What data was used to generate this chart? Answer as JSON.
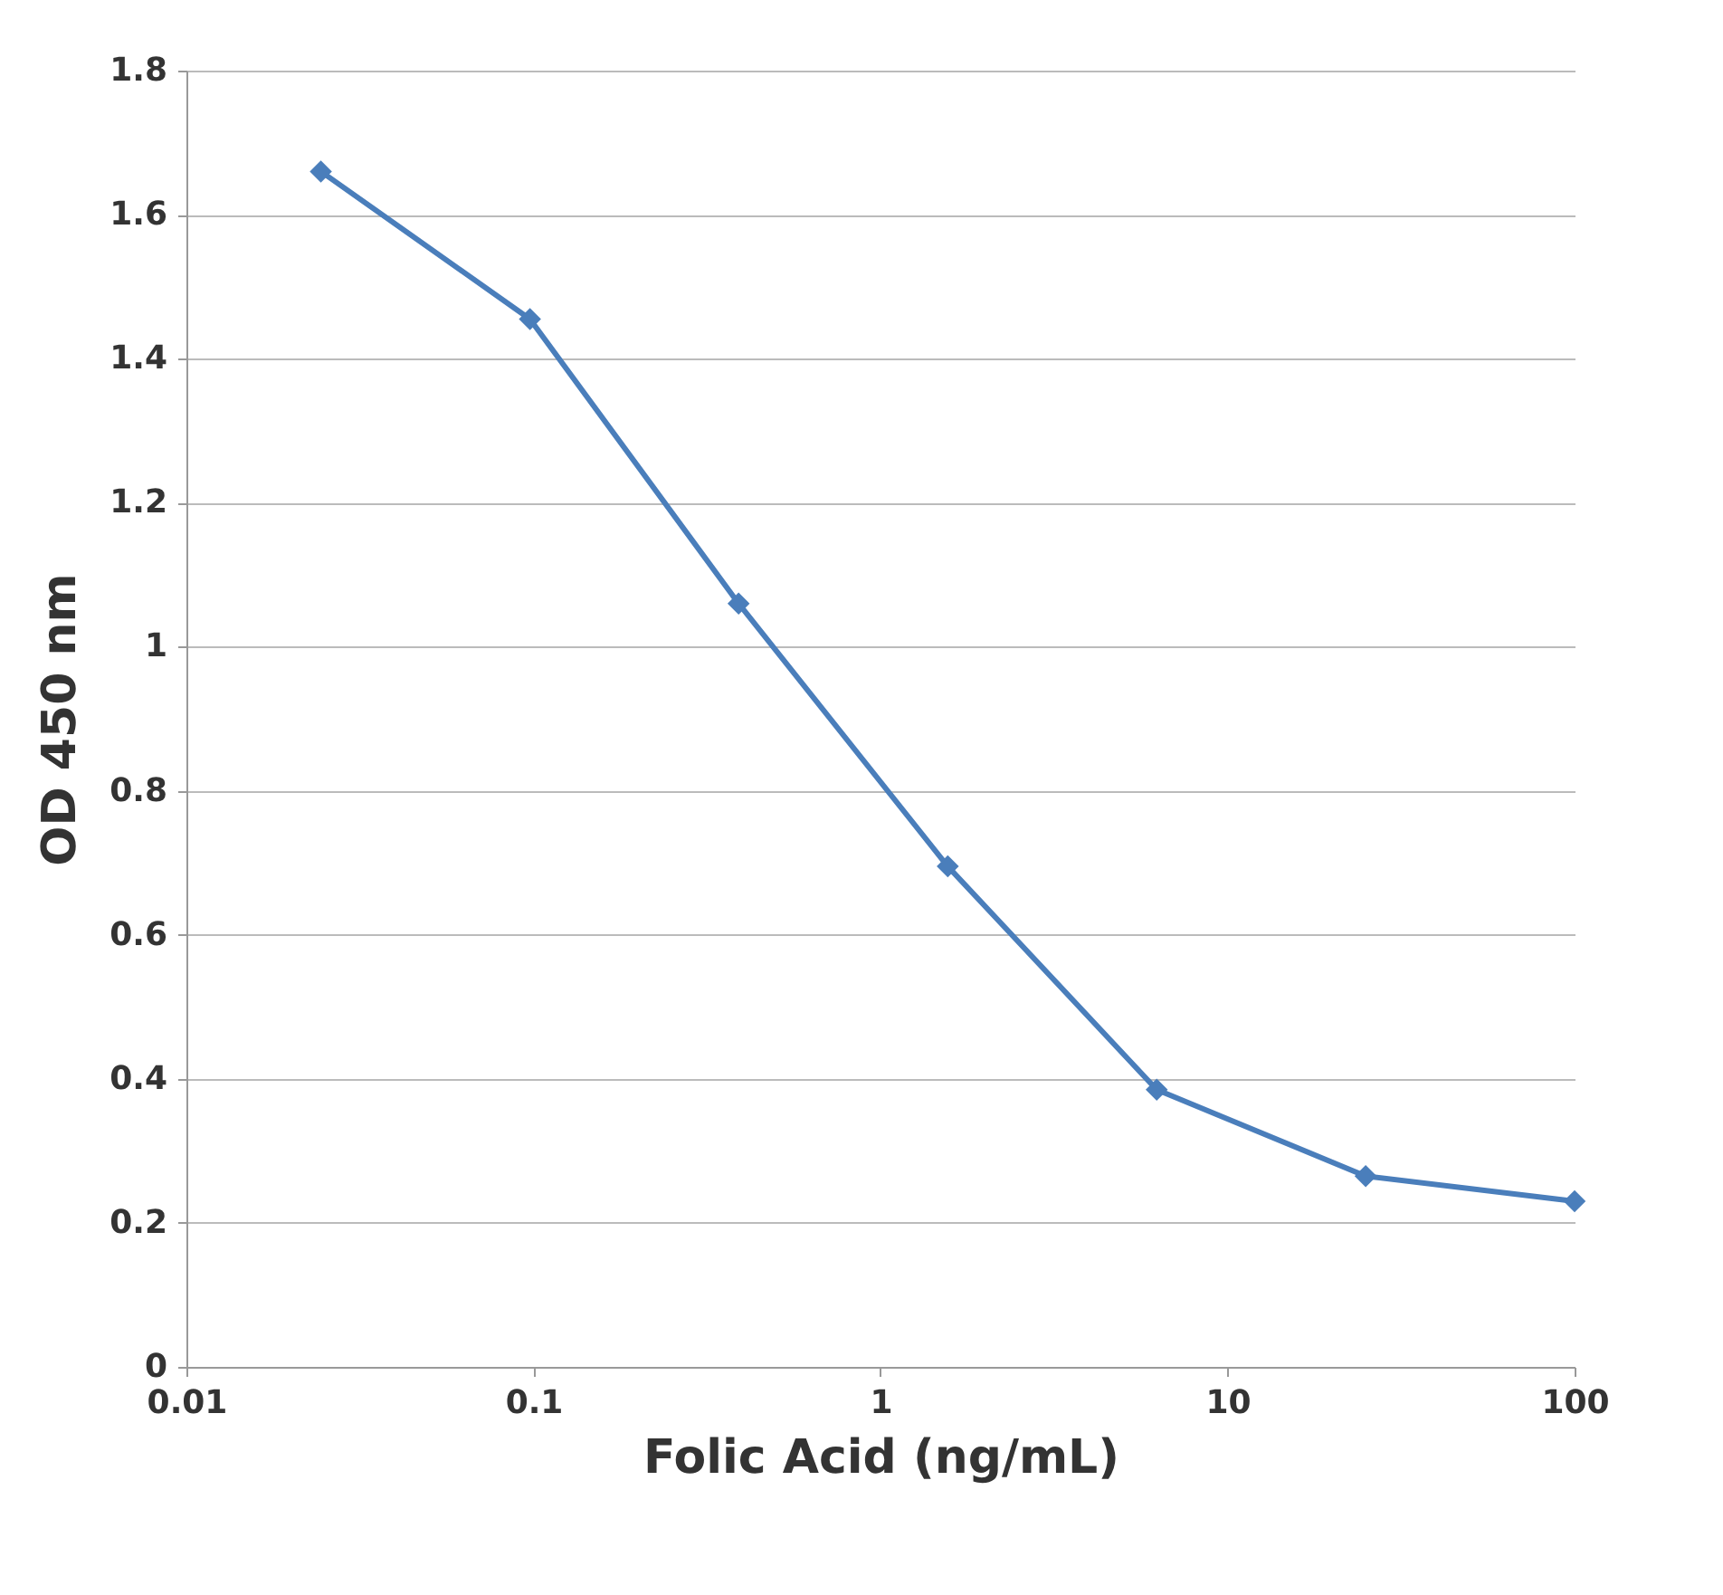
{
  "chart_data": {
    "type": "line",
    "xlabel": "Folic Acid (ng/mL)",
    "ylabel": "OD 450 nm",
    "x": [
      0.0244,
      0.0977,
      0.39,
      1.5625,
      6.25,
      25,
      100
    ],
    "series": [
      {
        "color": "#4a7ebb",
        "values": [
          1.66,
          1.455,
          1.06,
          0.695,
          0.385,
          0.265,
          0.23
        ]
      }
    ],
    "log": "x",
    "xlim": [
      0.01,
      100
    ],
    "xticks": [
      0.01,
      0.1,
      1,
      10,
      100
    ],
    "ylim": [
      0,
      1.8
    ],
    "yticks": [
      0,
      0.2,
      0.4,
      0.6,
      0.8,
      1,
      1.2,
      1.4,
      1.6,
      1.8
    ],
    "grid": "y",
    "marker": "diamond",
    "line_style": "solid"
  }
}
